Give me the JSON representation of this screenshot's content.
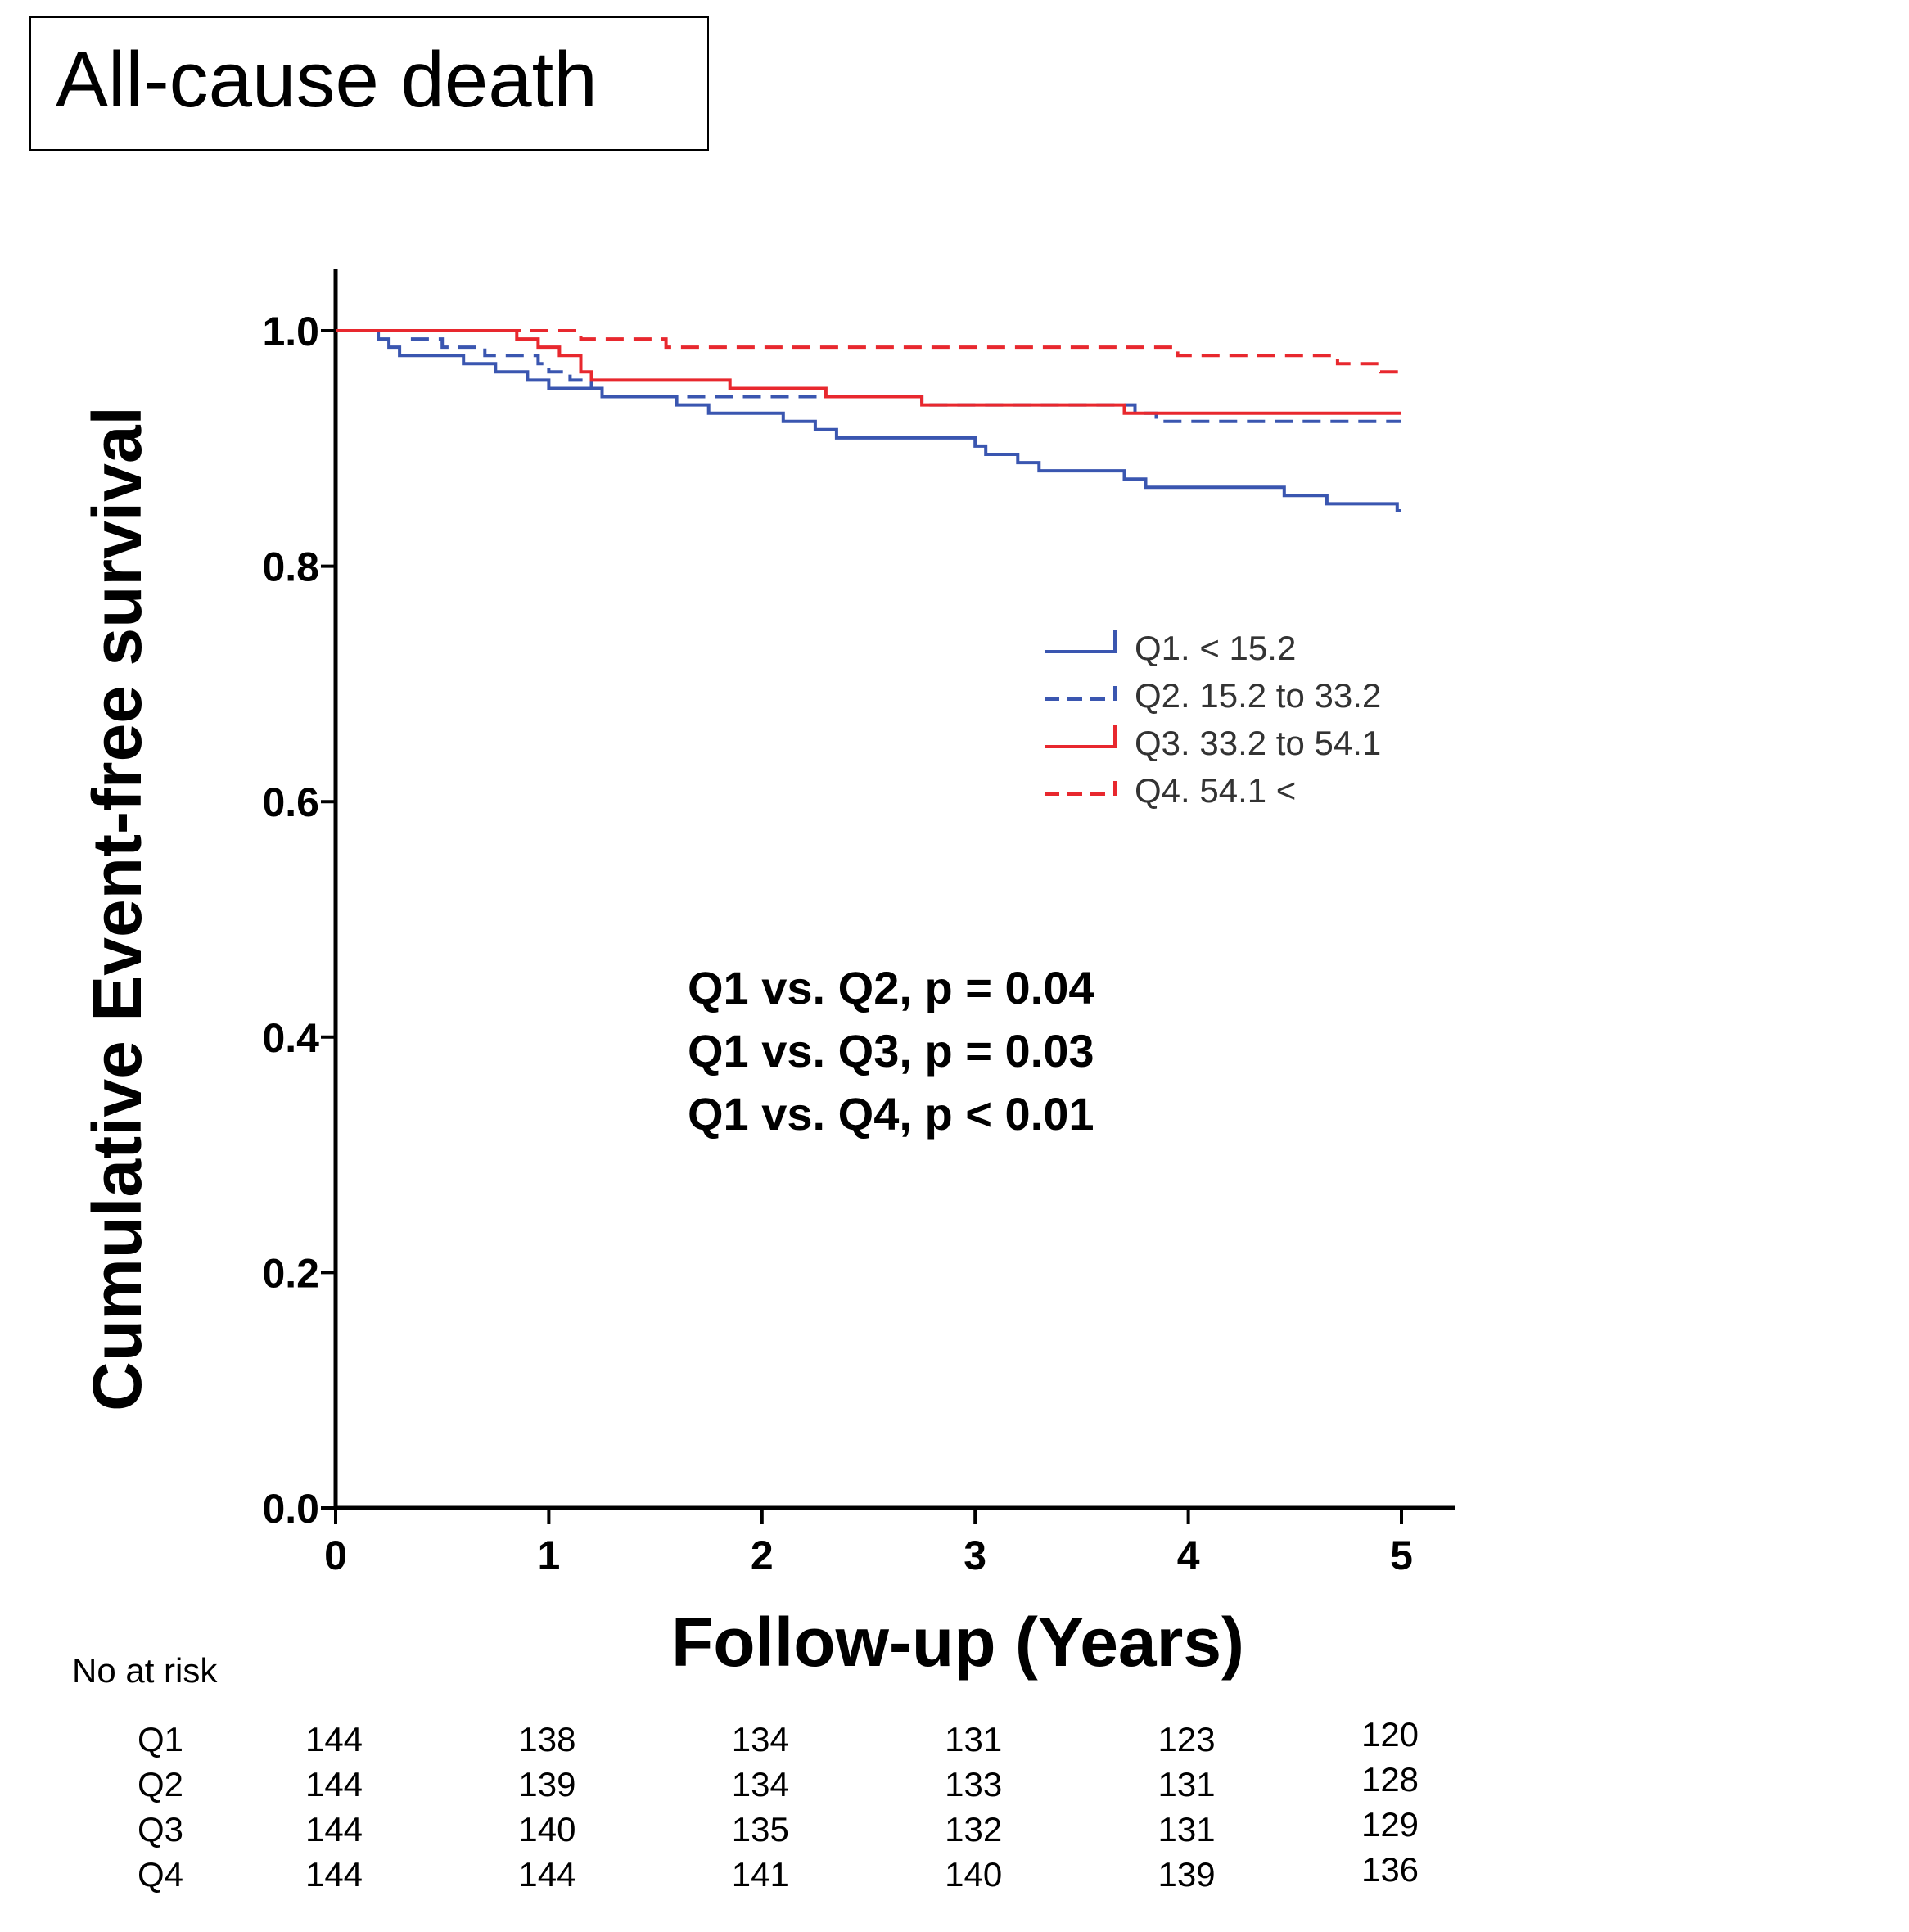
{
  "title": "All-cause death",
  "chart_data": {
    "type": "line",
    "subtype": "kaplan-meier step",
    "title": "All-cause death",
    "xlabel": "Follow-up (Years)",
    "ylabel": "Cumulative Event-free survival",
    "xlim": [
      0,
      5
    ],
    "ylim": [
      0,
      1.0
    ],
    "x_ticks": [
      "0",
      "1",
      "2",
      "3",
      "4",
      "5"
    ],
    "y_ticks": [
      "0.0",
      "0.2",
      "0.4",
      "0.6",
      "0.8",
      "1.0"
    ],
    "grid": false,
    "legend_position": "right-middle",
    "series": [
      {
        "name": "Q1. < 15.2",
        "color": "#3a56b0",
        "dash": "solid",
        "points": [
          [
            0,
            1.0
          ],
          [
            0.2,
            0.993
          ],
          [
            0.25,
            0.986
          ],
          [
            0.3,
            0.979
          ],
          [
            0.6,
            0.972
          ],
          [
            0.75,
            0.965
          ],
          [
            0.9,
            0.958
          ],
          [
            1.0,
            0.951
          ],
          [
            1.25,
            0.944
          ],
          [
            1.6,
            0.937
          ],
          [
            1.75,
            0.93
          ],
          [
            2.1,
            0.923
          ],
          [
            2.25,
            0.916
          ],
          [
            2.35,
            0.909
          ],
          [
            3.0,
            0.902
          ],
          [
            3.05,
            0.895
          ],
          [
            3.2,
            0.888
          ],
          [
            3.3,
            0.881
          ],
          [
            3.7,
            0.874
          ],
          [
            3.8,
            0.867
          ],
          [
            4.45,
            0.86
          ],
          [
            4.65,
            0.853
          ],
          [
            4.98,
            0.847
          ],
          [
            5.0,
            0.847
          ]
        ]
      },
      {
        "name": "Q2. 15.2 to 33.2",
        "color": "#3a56b0",
        "dash": "dashed",
        "points": [
          [
            0,
            1.0
          ],
          [
            0.35,
            0.993
          ],
          [
            0.5,
            0.986
          ],
          [
            0.7,
            0.979
          ],
          [
            0.95,
            0.972
          ],
          [
            1.0,
            0.965
          ],
          [
            1.1,
            0.958
          ],
          [
            1.2,
            0.951
          ],
          [
            1.25,
            0.944
          ],
          [
            2.75,
            0.937
          ],
          [
            3.75,
            0.93
          ],
          [
            3.85,
            0.923
          ],
          [
            5.0,
            0.923
          ]
        ]
      },
      {
        "name": "Q3. 33.2 to 54.1",
        "color": "#e8282e",
        "dash": "solid",
        "points": [
          [
            0,
            1.0
          ],
          [
            0.85,
            0.993
          ],
          [
            0.95,
            0.986
          ],
          [
            1.05,
            0.979
          ],
          [
            1.15,
            0.965
          ],
          [
            1.2,
            0.958
          ],
          [
            1.85,
            0.951
          ],
          [
            2.3,
            0.944
          ],
          [
            2.75,
            0.937
          ],
          [
            3.7,
            0.93
          ],
          [
            5.0,
            0.93
          ]
        ]
      },
      {
        "name": "Q4. 54.1 <",
        "color": "#e8282e",
        "dash": "dashed",
        "points": [
          [
            0,
            1.0
          ],
          [
            1.15,
            0.993
          ],
          [
            1.55,
            0.986
          ],
          [
            3.95,
            0.979
          ],
          [
            4.7,
            0.972
          ],
          [
            4.9,
            0.965
          ],
          [
            5.0,
            0.965
          ]
        ]
      }
    ],
    "annotations": [
      "Q1 vs. Q2, p = 0.04",
      "Q1 vs. Q3, p = 0.03",
      "Q1 vs. Q4, p < 0.01"
    ]
  },
  "risk_table": {
    "header": "No at risk",
    "rows": [
      {
        "label": "Q1",
        "values": [
          "144",
          "138",
          "134",
          "131",
          "123",
          "120"
        ]
      },
      {
        "label": "Q2",
        "values": [
          "144",
          "139",
          "134",
          "133",
          "131",
          "128"
        ]
      },
      {
        "label": "Q3",
        "values": [
          "144",
          "140",
          "135",
          "132",
          "131",
          "129"
        ]
      },
      {
        "label": "Q4",
        "values": [
          "144",
          "144",
          "141",
          "140",
          "139",
          "136"
        ]
      }
    ]
  }
}
